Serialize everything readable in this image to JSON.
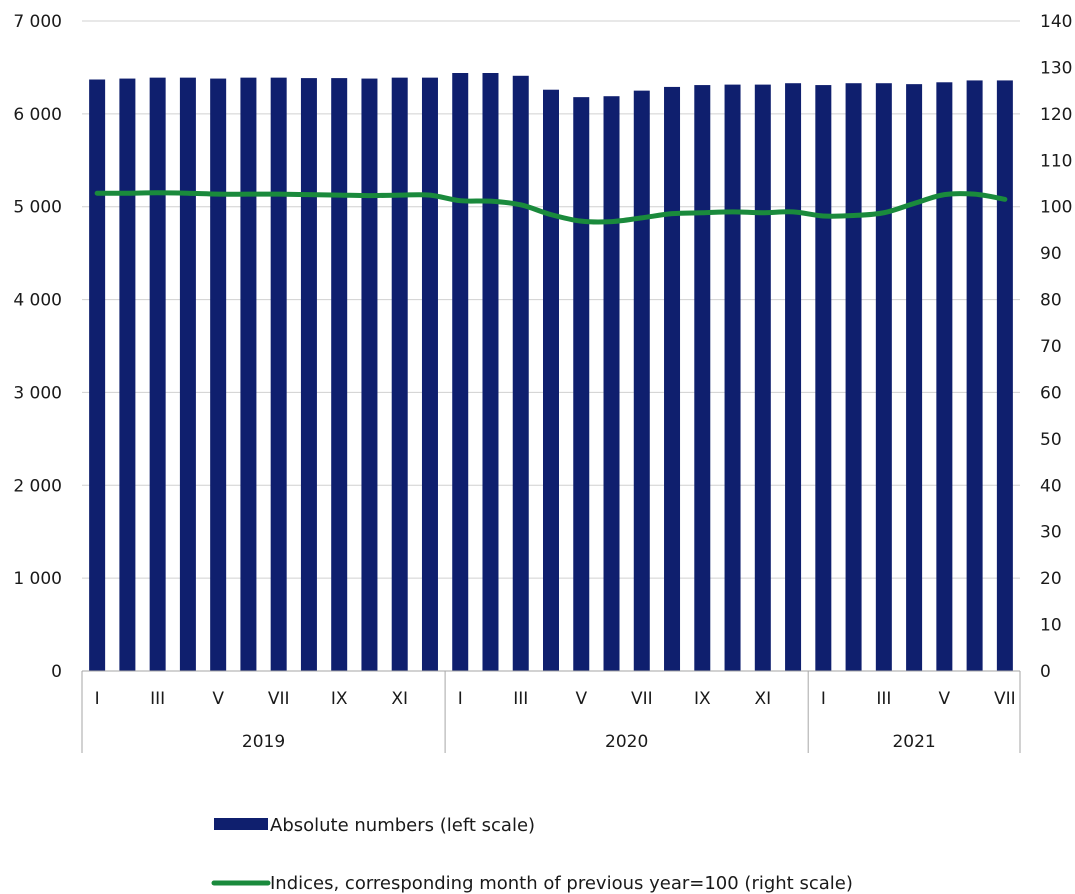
{
  "chart_data": {
    "type": "bar",
    "x": [
      "I",
      "II",
      "III",
      "IV",
      "V",
      "VI",
      "VII",
      "VIII",
      "IX",
      "X",
      "XI",
      "XII",
      "I",
      "II",
      "III",
      "IV",
      "V",
      "VI",
      "VII",
      "VIII",
      "IX",
      "X",
      "XI",
      "XII",
      "I",
      "II",
      "III",
      "IV",
      "V",
      "VI",
      "VII"
    ],
    "x_tick_labels": [
      "I",
      "",
      "III",
      "",
      "V",
      "",
      "VII",
      "",
      "IX",
      "",
      "XI",
      "",
      "I",
      "",
      "III",
      "",
      "V",
      "",
      "VII",
      "",
      "IX",
      "",
      "XI",
      "",
      "I",
      "",
      "III",
      "",
      "V",
      "",
      "VII"
    ],
    "groups": [
      {
        "label": "2019",
        "count": 12
      },
      {
        "label": "2020",
        "count": 12
      },
      {
        "label": "2021",
        "count": 7
      }
    ],
    "series": [
      {
        "name": "Absolute numbers (left scale)",
        "type": "bar",
        "axis": "left",
        "color": "#0f1f6e",
        "values": [
          6370,
          6380,
          6390,
          6390,
          6380,
          6390,
          6390,
          6385,
          6385,
          6380,
          6390,
          6390,
          6440,
          6440,
          6410,
          6260,
          6180,
          6190,
          6250,
          6290,
          6310,
          6315,
          6315,
          6330,
          6310,
          6330,
          6330,
          6320,
          6340,
          6360,
          6360
        ]
      },
      {
        "name": "Indices, corresponding month of previous year=100 (right scale)",
        "type": "line",
        "axis": "right",
        "color": "#1a8a3c",
        "values": [
          102.9,
          102.9,
          103.0,
          102.9,
          102.7,
          102.7,
          102.7,
          102.6,
          102.5,
          102.4,
          102.5,
          102.5,
          101.3,
          101.2,
          100.4,
          98.3,
          96.9,
          96.8,
          97.6,
          98.5,
          98.7,
          98.9,
          98.7,
          98.9,
          98.0,
          98.1,
          98.7,
          100.7,
          102.6,
          102.7,
          101.6
        ]
      }
    ],
    "y_left": {
      "min": 0,
      "max": 7000,
      "step": 1000,
      "tick_labels": [
        "0",
        "1 000",
        "2 000",
        "3 000",
        "4 000",
        "5 000",
        "6 000",
        "7 000"
      ]
    },
    "y_right": {
      "min": 0,
      "max": 140,
      "step": 10,
      "tick_labels": [
        "0",
        "10",
        "20",
        "30",
        "40",
        "50",
        "60",
        "70",
        "80",
        "90",
        "100",
        "110",
        "120",
        "130",
        "140"
      ]
    },
    "grid": true,
    "legend_position": "bottom",
    "title": "",
    "xlabel": "",
    "ylabel": ""
  }
}
